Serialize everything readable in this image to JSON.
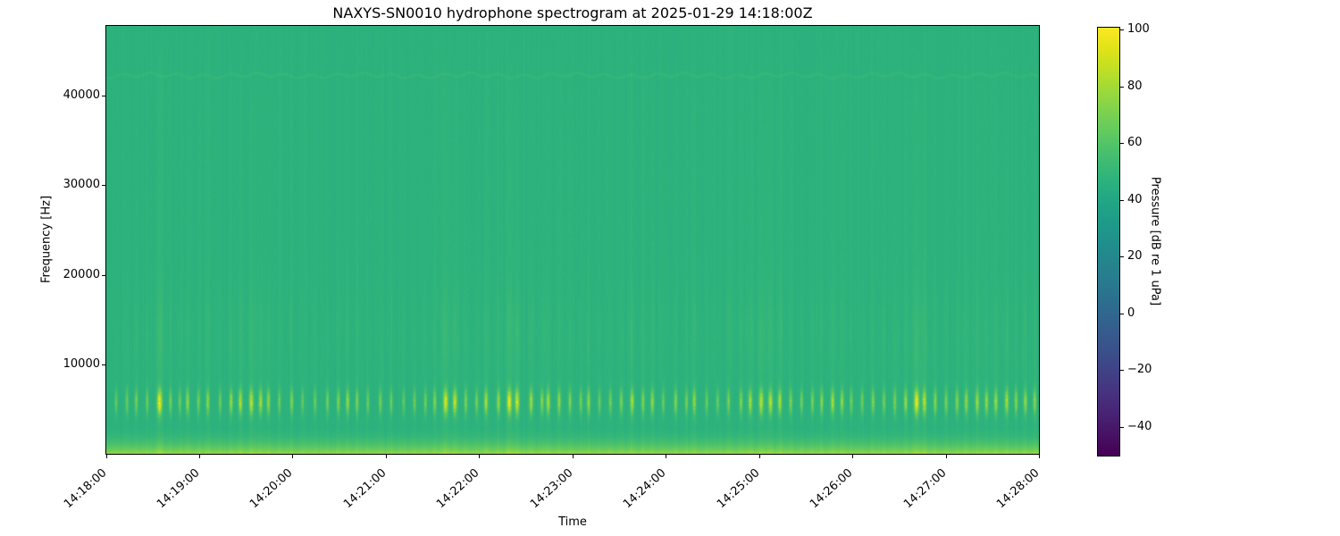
{
  "title": "NAXYS-SN0010 hydrophone spectrogram at 2025-01-29 14:18:00Z",
  "xlabel": "Time",
  "ylabel": "Frequency [Hz]",
  "colorbar": {
    "label": "Pressure [dB re 1 uPa]",
    "ticks": [
      {
        "value": 100,
        "label": "100"
      },
      {
        "value": 80,
        "label": "80"
      },
      {
        "value": 60,
        "label": "60"
      },
      {
        "value": 40,
        "label": "40"
      },
      {
        "value": 20,
        "label": "20"
      },
      {
        "value": 0,
        "label": "0"
      },
      {
        "value": -20,
        "label": "−20"
      },
      {
        "value": -40,
        "label": "−40"
      }
    ],
    "vmin": -50,
    "vmax": 100
  },
  "x_ticks": [
    "14:18:00",
    "14:19:00",
    "14:20:00",
    "14:21:00",
    "14:22:00",
    "14:23:00",
    "14:24:00",
    "14:25:00",
    "14:26:00",
    "14:27:00",
    "14:28:00"
  ],
  "y_ticks": [
    {
      "value": 10000,
      "label": "10000"
    },
    {
      "value": 20000,
      "label": "20000"
    },
    {
      "value": 30000,
      "label": "30000"
    },
    {
      "value": 40000,
      "label": "40000"
    }
  ],
  "colormap": {
    "name": "viridis",
    "stops": [
      "#440154",
      "#471365",
      "#482475",
      "#463480",
      "#404387",
      "#3a528b",
      "#345f8d",
      "#2e6c8e",
      "#29798e",
      "#24858d",
      "#20908c",
      "#1e9c89",
      "#22a784",
      "#2fb47c",
      "#44be70",
      "#5ec961",
      "#7ad151",
      "#9bd93c",
      "#bddf26",
      "#dfe318",
      "#fde725"
    ]
  },
  "chart_data": {
    "type": "heatmap",
    "subtype": "spectrogram",
    "x_start": "14:18:00",
    "x_end": "14:28:00",
    "duration_s": 600,
    "freq_min_hz": 0,
    "freq_max_hz": 47800,
    "value_min_db": -50,
    "value_max_db": 100,
    "background_db": 46,
    "tonal_band_hz": 42300,
    "tonal_band_boost_db": 3.4,
    "low_band_cutoff_hz": 3200,
    "low_band_boost_db": 26,
    "click_band_center_hz": 5800,
    "click_band_sigma_hz": 1350,
    "click_max_boost_db": 48,
    "events": [
      [
        6,
        0.25
      ],
      [
        13,
        0.3
      ],
      [
        19,
        0.35
      ],
      [
        26,
        0.3
      ],
      [
        34,
        1.0
      ],
      [
        41,
        0.35
      ],
      [
        47,
        0.3
      ],
      [
        52,
        0.5
      ],
      [
        59,
        0.35
      ],
      [
        65,
        0.45
      ],
      [
        73,
        0.3
      ],
      [
        80,
        0.5
      ],
      [
        86,
        0.65
      ],
      [
        93,
        0.75
      ],
      [
        99,
        0.6
      ],
      [
        104,
        0.5
      ],
      [
        111,
        0.3
      ],
      [
        119,
        0.4
      ],
      [
        126,
        0.25
      ],
      [
        134,
        0.3
      ],
      [
        142,
        0.35
      ],
      [
        149,
        0.4
      ],
      [
        155,
        0.5
      ],
      [
        161,
        0.4
      ],
      [
        168,
        0.3
      ],
      [
        176,
        0.35
      ],
      [
        183,
        0.3
      ],
      [
        191,
        0.25
      ],
      [
        198,
        0.3
      ],
      [
        205,
        0.35
      ],
      [
        211,
        0.4
      ],
      [
        218,
        0.9
      ],
      [
        224,
        0.75
      ],
      [
        231,
        0.4
      ],
      [
        238,
        0.35
      ],
      [
        244,
        0.6
      ],
      [
        252,
        0.5
      ],
      [
        259,
        0.95
      ],
      [
        264,
        0.8
      ],
      [
        273,
        0.6
      ],
      [
        280,
        0.45
      ],
      [
        284,
        0.6
      ],
      [
        291,
        0.5
      ],
      [
        298,
        0.4
      ],
      [
        305,
        0.35
      ],
      [
        310,
        0.5
      ],
      [
        317,
        0.3
      ],
      [
        324,
        0.35
      ],
      [
        331,
        0.4
      ],
      [
        338,
        0.6
      ],
      [
        345,
        0.4
      ],
      [
        351,
        0.5
      ],
      [
        358,
        0.3
      ],
      [
        366,
        0.45
      ],
      [
        373,
        0.35
      ],
      [
        378,
        0.5
      ],
      [
        386,
        0.3
      ],
      [
        393,
        0.3
      ],
      [
        400,
        0.35
      ],
      [
        408,
        0.4
      ],
      [
        414,
        0.6
      ],
      [
        421,
        0.75
      ],
      [
        427,
        0.7
      ],
      [
        433,
        0.6
      ],
      [
        440,
        0.4
      ],
      [
        447,
        0.35
      ],
      [
        454,
        0.4
      ],
      [
        460,
        0.45
      ],
      [
        467,
        0.6
      ],
      [
        473,
        0.5
      ],
      [
        479,
        0.35
      ],
      [
        486,
        0.35
      ],
      [
        493,
        0.4
      ],
      [
        500,
        0.35
      ],
      [
        507,
        0.4
      ],
      [
        514,
        0.5
      ],
      [
        521,
        1.0
      ],
      [
        526,
        0.7
      ],
      [
        533,
        0.45
      ],
      [
        540,
        0.4
      ],
      [
        547,
        0.45
      ],
      [
        553,
        0.5
      ],
      [
        560,
        0.55
      ],
      [
        566,
        0.5
      ],
      [
        572,
        0.55
      ],
      [
        579,
        0.6
      ],
      [
        585,
        0.45
      ],
      [
        591,
        0.5
      ],
      [
        597,
        0.45
      ]
    ]
  }
}
